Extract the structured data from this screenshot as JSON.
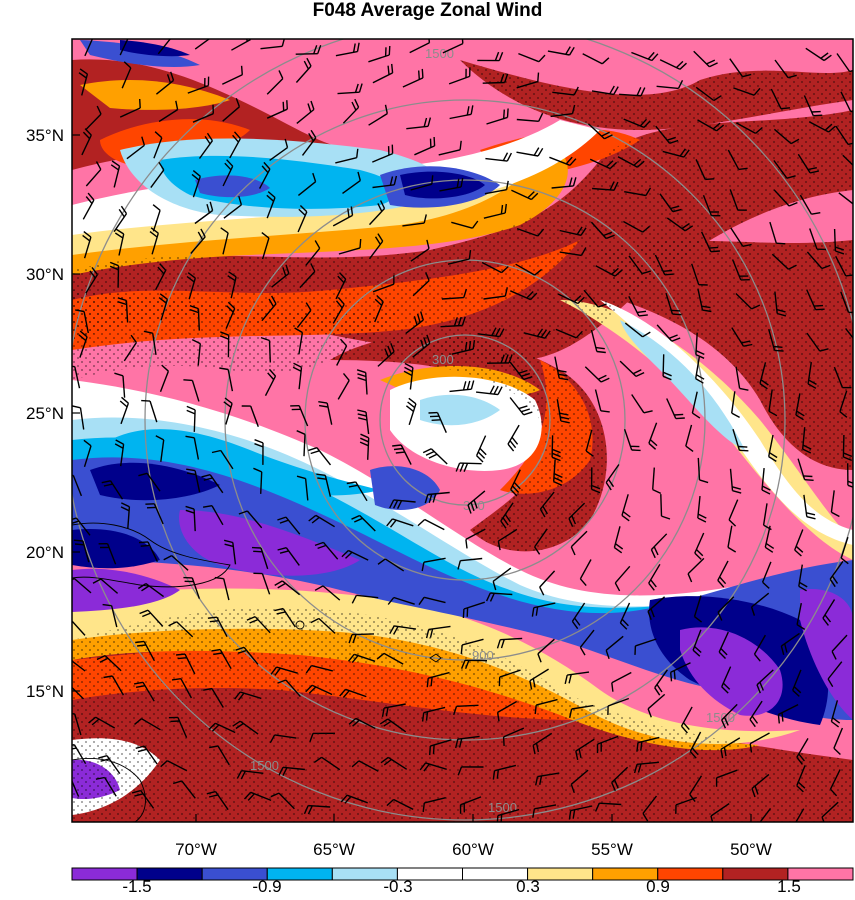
{
  "title": "F048 Average Zonal Wind",
  "colors": {
    "bins": [
      "#8b2bd8",
      "#00008b",
      "#3a4fd1",
      "#00b4f0",
      "#a8e0f5",
      "#ffffff",
      "#ffffff",
      "#ffe58a",
      "#ffa000",
      "#ff4500",
      "#b22222",
      "#ff74a6"
    ]
  },
  "lat_labels": [
    "35°N",
    "30°N",
    "25°N",
    "20°N",
    "15°N"
  ],
  "lon_labels": [
    "70°W",
    "65°W",
    "60°W",
    "55°W",
    "50°W"
  ],
  "colorbar_labels": [
    "-1.5",
    "-0.9",
    "-0.3",
    "0.3",
    "0.9",
    "1.5"
  ],
  "ring_labels": [
    "300",
    "900",
    "1500"
  ]
}
